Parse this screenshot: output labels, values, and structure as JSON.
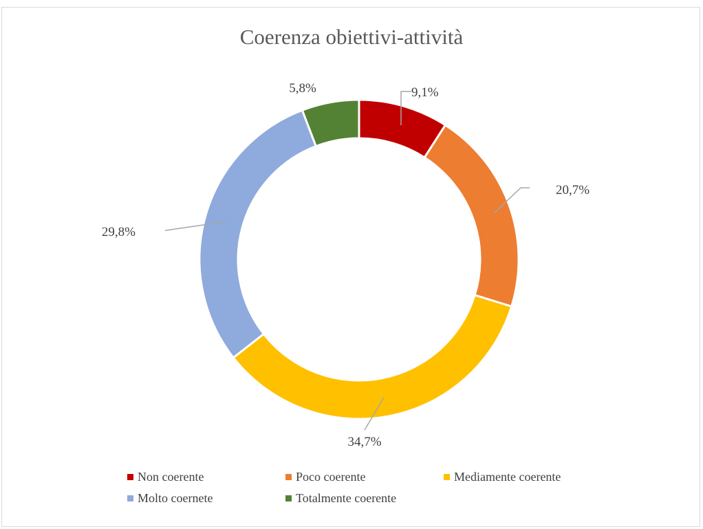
{
  "chart_data": {
    "type": "pie",
    "style": "donut",
    "title": "Coerenza obiettivi-attività",
    "slices": [
      {
        "label": "Non coerente",
        "value": 9.1,
        "data_label": "9,1%",
        "color": "#C00000"
      },
      {
        "label": "Poco coerente",
        "value": 20.7,
        "data_label": "20,7%",
        "color": "#ED7D31"
      },
      {
        "label": "Mediamente coerente",
        "value": 34.7,
        "data_label": "34,7%",
        "color": "#FFC000"
      },
      {
        "label": "Molto coernete",
        "value": 29.8,
        "data_label": "29,8%",
        "color": "#8FAADC"
      },
      {
        "label": "Totalmente coerente",
        "value": 5.8,
        "data_label": "5,8%",
        "color": "#548235"
      }
    ],
    "legend_position": "bottom"
  }
}
